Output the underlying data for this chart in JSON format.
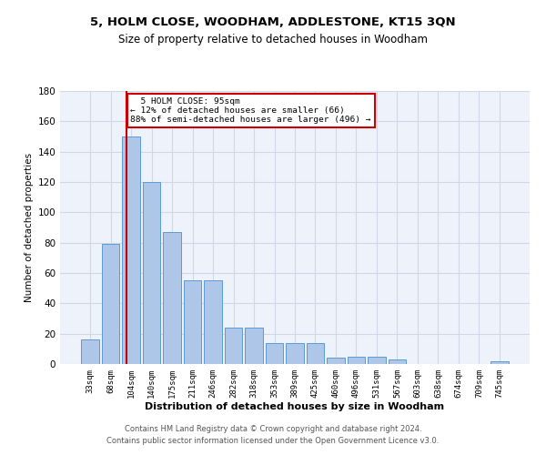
{
  "title1": "5, HOLM CLOSE, WOODHAM, ADDLESTONE, KT15 3QN",
  "title2": "Size of property relative to detached houses in Woodham",
  "xlabel": "Distribution of detached houses by size in Woodham",
  "ylabel": "Number of detached properties",
  "bins": [
    "33sqm",
    "68sqm",
    "104sqm",
    "140sqm",
    "175sqm",
    "211sqm",
    "246sqm",
    "282sqm",
    "318sqm",
    "353sqm",
    "389sqm",
    "425sqm",
    "460sqm",
    "496sqm",
    "531sqm",
    "567sqm",
    "603sqm",
    "638sqm",
    "674sqm",
    "709sqm",
    "745sqm"
  ],
  "bar_heights": [
    16,
    79,
    150,
    120,
    87,
    55,
    55,
    24,
    24,
    14,
    14,
    14,
    4,
    5,
    5,
    3,
    0,
    0,
    0,
    0,
    2
  ],
  "bar_color": "#aec6e8",
  "bar_edge_color": "#5b9bd5",
  "property_line_x": 1.79,
  "annotation_text": "  5 HOLM CLOSE: 95sqm\n← 12% of detached houses are smaller (66)\n88% of semi-detached houses are larger (496) →",
  "annotation_box_color": "#ffffff",
  "annotation_box_edge": "#cc0000",
  "vline_color": "#cc0000",
  "grid_color": "#d0d8e8",
  "bg_color": "#eef2fa",
  "footer1": "Contains HM Land Registry data © Crown copyright and database right 2024.",
  "footer2": "Contains public sector information licensed under the Open Government Licence v3.0.",
  "ylim": [
    0,
    180
  ],
  "yticks": [
    0,
    20,
    40,
    60,
    80,
    100,
    120,
    140,
    160,
    180
  ]
}
